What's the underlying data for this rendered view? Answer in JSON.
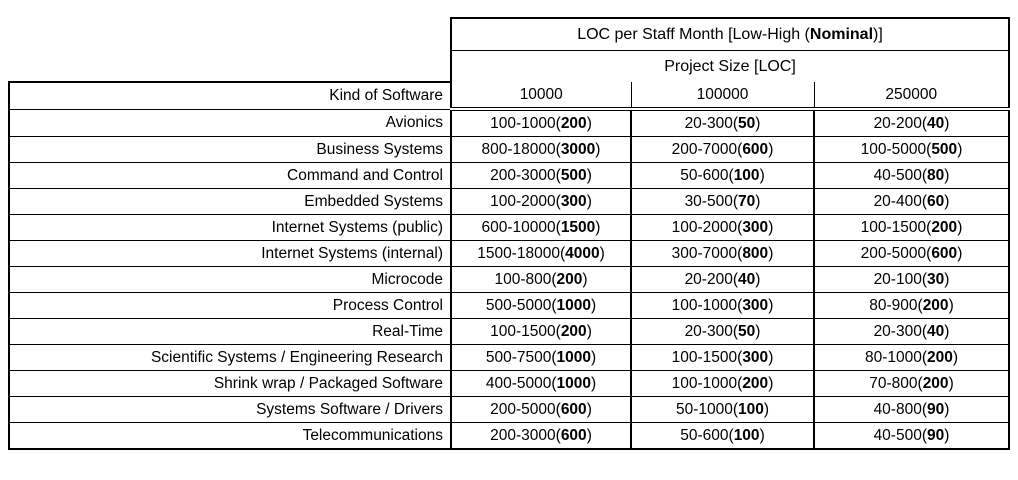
{
  "colors": {
    "border": "#000000",
    "text": "#000000",
    "background": "#ffffff"
  },
  "header": {
    "title_pre": "LOC per Staff Month [Low-High (",
    "title_bold": "Nominal",
    "title_post": ")]",
    "subtitle": "Project Size [LOC]",
    "kind_label": "Kind of Software",
    "sizes": [
      "10000",
      "100000",
      "250000"
    ]
  },
  "punct": {
    "close": ")"
  },
  "rows": [
    {
      "label": "Avionics",
      "c1": {
        "t": "100-1000(",
        "b": "200"
      },
      "c2": {
        "t": "20-300(",
        "b": "50"
      },
      "c3": {
        "t": "20-200(",
        "b": "40"
      }
    },
    {
      "label": "Business Systems",
      "c1": {
        "t": "800-18000(",
        "b": "3000"
      },
      "c2": {
        "t": "200-7000(",
        "b": "600"
      },
      "c3": {
        "t": "100-5000(",
        "b": "500"
      }
    },
    {
      "label": "Command and Control",
      "c1": {
        "t": "200-3000(",
        "b": "500"
      },
      "c2": {
        "t": "50-600(",
        "b": "100"
      },
      "c3": {
        "t": "40-500(",
        "b": "80"
      }
    },
    {
      "label": "Embedded Systems",
      "c1": {
        "t": "100-2000(",
        "b": "300"
      },
      "c2": {
        "t": "30-500(",
        "b": "70"
      },
      "c3": {
        "t": "20-400(",
        "b": "60"
      }
    },
    {
      "label": "Internet Systems (public)",
      "c1": {
        "t": "600-10000(",
        "b": "1500"
      },
      "c2": {
        "t": "100-2000(",
        "b": "300"
      },
      "c3": {
        "t": "100-1500(",
        "b": "200"
      }
    },
    {
      "label": "Internet Systems (internal)",
      "c1": {
        "t": "1500-18000(",
        "b": "4000"
      },
      "c2": {
        "t": "300-7000(",
        "b": "800"
      },
      "c3": {
        "t": "200-5000(",
        "b": "600"
      }
    },
    {
      "label": "Microcode",
      "c1": {
        "t": "100-800(",
        "b": "200"
      },
      "c2": {
        "t": "20-200(",
        "b": "40"
      },
      "c3": {
        "t": "20-100(",
        "b": "30"
      }
    },
    {
      "label": "Process Control",
      "c1": {
        "t": "500-5000(",
        "b": "1000"
      },
      "c2": {
        "t": "100-1000(",
        "b": "300"
      },
      "c3": {
        "t": "80-900(",
        "b": "200"
      }
    },
    {
      "label": "Real-Time",
      "c1": {
        "t": "100-1500(",
        "b": "200"
      },
      "c2": {
        "t": "20-300(",
        "b": "50"
      },
      "c3": {
        "t": "20-300(",
        "b": "40"
      }
    },
    {
      "label": "Scientific Systems / Engineering Research",
      "c1": {
        "t": "500-7500(",
        "b": "1000"
      },
      "c2": {
        "t": "100-1500(",
        "b": "300"
      },
      "c3": {
        "t": "80-1000(",
        "b": "200"
      }
    },
    {
      "label": "Shrink wrap / Packaged Software",
      "c1": {
        "t": "400-5000(",
        "b": "1000"
      },
      "c2": {
        "t": "100-1000(",
        "b": "200"
      },
      "c3": {
        "t": "70-800(",
        "b": "200"
      }
    },
    {
      "label": "Systems Software / Drivers",
      "c1": {
        "t": "200-5000(",
        "b": "600"
      },
      "c2": {
        "t": "50-1000(",
        "b": "100"
      },
      "c3": {
        "t": "40-800(",
        "b": "90"
      }
    },
    {
      "label": "Telecommunications",
      "c1": {
        "t": "200-3000(",
        "b": "600"
      },
      "c2": {
        "t": "50-600(",
        "b": "100"
      },
      "c3": {
        "t": "40-500(",
        "b": "90"
      }
    }
  ]
}
